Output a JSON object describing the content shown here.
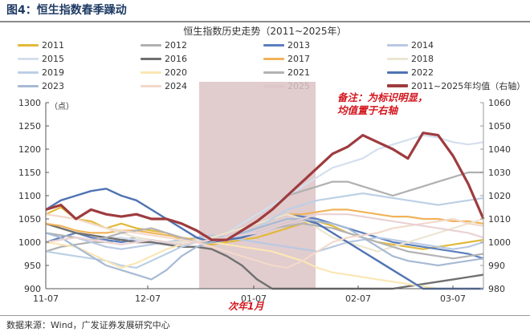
{
  "figure": {
    "title": "图4：恒生指数春季躁动",
    "source": "数据来源：Wind，广发证券发展研究中心"
  },
  "chart_data": {
    "type": "line",
    "title": "恒生指数历史走势（2011~2025年）",
    "left_axis": {
      "label": "（点）",
      "ylim": [
        900,
        1300
      ],
      "ticks": [
        900,
        950,
        1000,
        1050,
        1100,
        1150,
        1200,
        1250,
        1300
      ]
    },
    "right_axis": {
      "ylim": [
        980,
        1060
      ],
      "ticks": [
        980,
        990,
        1000,
        1010,
        1020,
        1030,
        1040,
        1050,
        1060
      ]
    },
    "x_ticks": [
      "11-07",
      "12-07",
      "01-07",
      "02-07",
      "03-07"
    ],
    "shaded_region": {
      "label": "次年1月",
      "color": "#dcc3c5"
    },
    "annotation": "备注：为标识明显，均值置于右轴",
    "legend_position": "top",
    "series": [
      {
        "name": "2011",
        "color": "#e2b93b",
        "width": 2.2,
        "axis": "left",
        "values": [
          1060,
          1075,
          1050,
          1045,
          1030,
          1040,
          1030,
          1025,
          1020,
          1005,
          1000,
          995,
          1000,
          1005,
          1010,
          1020,
          1030,
          1040,
          1045,
          1035,
          1020,
          1010,
          1000,
          995,
          990,
          985,
          990,
          995,
          1000,
          1005
        ]
      },
      {
        "name": "2012",
        "color": "#b0b0b0",
        "width": 2.2,
        "axis": "left",
        "values": [
          980,
          990,
          995,
          1000,
          1000,
          1005,
          1010,
          1005,
          1000,
          1000,
          1005,
          1010,
          1020,
          1040,
          1060,
          1080,
          1100,
          1110,
          1120,
          1130,
          1130,
          1120,
          1110,
          1100,
          1110,
          1120,
          1130,
          1140,
          1150,
          1150
        ]
      },
      {
        "name": "2013",
        "color": "#5b7fbd",
        "width": 2.2,
        "axis": "left",
        "values": [
          1000,
          1010,
          1020,
          1010,
          1005,
          1000,
          1005,
          1000,
          995,
          1000,
          1005,
          1010,
          1020,
          1030,
          1040,
          1050,
          1060,
          1055,
          1050,
          1040,
          1030,
          1020,
          1010,
          1000,
          995,
          990,
          985,
          980,
          975,
          965
        ]
      },
      {
        "name": "2014",
        "color": "#b8c9e2",
        "width": 2.2,
        "axis": "left",
        "values": [
          1020,
          1015,
          1010,
          1000,
          990,
          985,
          990,
          995,
          1000,
          1005,
          1010,
          1015,
          1010,
          1005,
          1000,
          995,
          990,
          985,
          980,
          990,
          1000,
          1005,
          1010,
          1005,
          1000,
          995,
          990,
          985,
          990,
          1000
        ]
      },
      {
        "name": "2015",
        "color": "#d5dfee",
        "width": 2.2,
        "axis": "left",
        "values": [
          1040,
          1030,
          1020,
          1015,
          1010,
          1010,
          1005,
          1000,
          995,
          1000,
          1005,
          1010,
          1020,
          1040,
          1060,
          1080,
          1100,
          1120,
          1140,
          1160,
          1170,
          1180,
          1200,
          1210,
          1220,
          1230,
          1225,
          1215,
          1210,
          1215
        ]
      },
      {
        "name": "2016",
        "color": "#707070",
        "width": 2.4,
        "axis": "left",
        "values": [
          1040,
          1030,
          1020,
          1015,
          1010,
          1005,
          1000,
          1000,
          995,
          990,
          990,
          985,
          970,
          950,
          920,
          900,
          880,
          870,
          860,
          870,
          880,
          890,
          895,
          900,
          905,
          910,
          915,
          920,
          925,
          930
        ]
      },
      {
        "name": "2017",
        "color": "#f0b35a",
        "width": 2.2,
        "axis": "left",
        "values": [
          1040,
          1035,
          1025,
          1020,
          1020,
          1025,
          1025,
          1020,
          1015,
          1010,
          1005,
          1010,
          1020,
          1030,
          1040,
          1050,
          1060,
          1060,
          1065,
          1070,
          1070,
          1065,
          1060,
          1055,
          1055,
          1050,
          1050,
          1045,
          1045,
          1040
        ]
      },
      {
        "name": "2018",
        "color": "#ece6d2",
        "width": 2.2,
        "axis": "left",
        "values": [
          1060,
          1055,
          1050,
          1040,
          1030,
          1020,
          1010,
          1005,
          1000,
          1000,
          1005,
          1010,
          1020,
          1030,
          1040,
          1050,
          1060,
          1050,
          1030,
          1010,
          1000,
          990,
          980,
          990,
          1000,
          1010,
          1020,
          1030,
          1040,
          1050
        ]
      },
      {
        "name": "2019",
        "color": "#bcd0e6",
        "width": 2.2,
        "axis": "left",
        "values": [
          980,
          975,
          970,
          965,
          960,
          950,
          945,
          960,
          975,
          990,
          1000,
          1000,
          1005,
          1015,
          1030,
          1050,
          1070,
          1080,
          1090,
          1095,
          1100,
          1105,
          1100,
          1095,
          1090,
          1085,
          1080,
          1085,
          1090,
          1095
        ]
      },
      {
        "name": "2020",
        "color": "#fbe7b5",
        "width": 2.2,
        "axis": "left",
        "values": [
          1000,
          995,
          990,
          975,
          960,
          945,
          955,
          970,
          985,
          995,
          1000,
          1000,
          995,
          990,
          985,
          980,
          970,
          960,
          945,
          935,
          930,
          925,
          920,
          915,
          910,
          905,
          900,
          895,
          890,
          880
        ]
      },
      {
        "name": "2021",
        "color": "#b3b3b3",
        "width": 2.2,
        "axis": "left",
        "values": [
          1020,
          1015,
          1010,
          1005,
          1010,
          1020,
          1025,
          1030,
          1020,
          1010,
          1000,
          1000,
          1005,
          1010,
          1020,
          1030,
          1035,
          1040,
          1035,
          1030,
          1020,
          1010,
          1000,
          990,
          980,
          975,
          970,
          965,
          970,
          975
        ]
      },
      {
        "name": "2022",
        "color": "#4f73b3",
        "width": 2.4,
        "axis": "left",
        "values": [
          1070,
          1090,
          1100,
          1110,
          1115,
          1100,
          1090,
          1070,
          1050,
          1030,
          1010,
          1000,
          1005,
          1010,
          1020,
          1030,
          1040,
          1050,
          1040,
          1020,
          1000,
          980,
          960,
          940,
          920,
          900,
          880,
          870,
          860,
          850
        ]
      },
      {
        "name": "2023",
        "color": "#a7bad4",
        "width": 2.2,
        "axis": "left",
        "values": [
          1020,
          1010,
          990,
          970,
          950,
          940,
          930,
          920,
          940,
          970,
          990,
          1000,
          1010,
          1020,
          1030,
          1040,
          1050,
          1050,
          1045,
          1040,
          1030,
          1010,
          990,
          970,
          960,
          955,
          950,
          955,
          960,
          965
        ]
      },
      {
        "name": "2024",
        "color": "#f3d9cb",
        "width": 2.2,
        "axis": "left",
        "values": [
          1060,
          1055,
          1050,
          1040,
          1030,
          1025,
          1020,
          1015,
          1010,
          1005,
          1000,
          990,
          980,
          970,
          960,
          950,
          945,
          960,
          980,
          1000,
          1010,
          1015,
          1020,
          1030,
          1035,
          1040,
          1045,
          1050,
          1040,
          1035
        ]
      },
      {
        "name": "2025",
        "color": "#ead2d4",
        "width": 2.2,
        "axis": "left",
        "values": [
          1000,
          1005,
          1010,
          1005,
          1000,
          995,
          1000,
          1005,
          1000,
          995,
          1000,
          1005,
          1010,
          1015,
          1020,
          1030,
          1040,
          1050,
          1060,
          1060,
          1060,
          1055,
          1050,
          1045,
          1040,
          1035,
          1030,
          1025,
          1020,
          1010
        ]
      },
      {
        "name": "2011~2025年均值（右轴）",
        "color": "#9e3b3e",
        "width": 3.2,
        "axis": "right",
        "values": [
          1014,
          1016,
          1010,
          1014,
          1012,
          1011,
          1012,
          1010,
          1010,
          1008,
          1005,
          1001,
          1001,
          1005,
          1009,
          1014,
          1020,
          1026,
          1032,
          1038,
          1041,
          1046,
          1043,
          1040,
          1036,
          1047,
          1046,
          1037,
          1025,
          1010
        ]
      }
    ]
  }
}
